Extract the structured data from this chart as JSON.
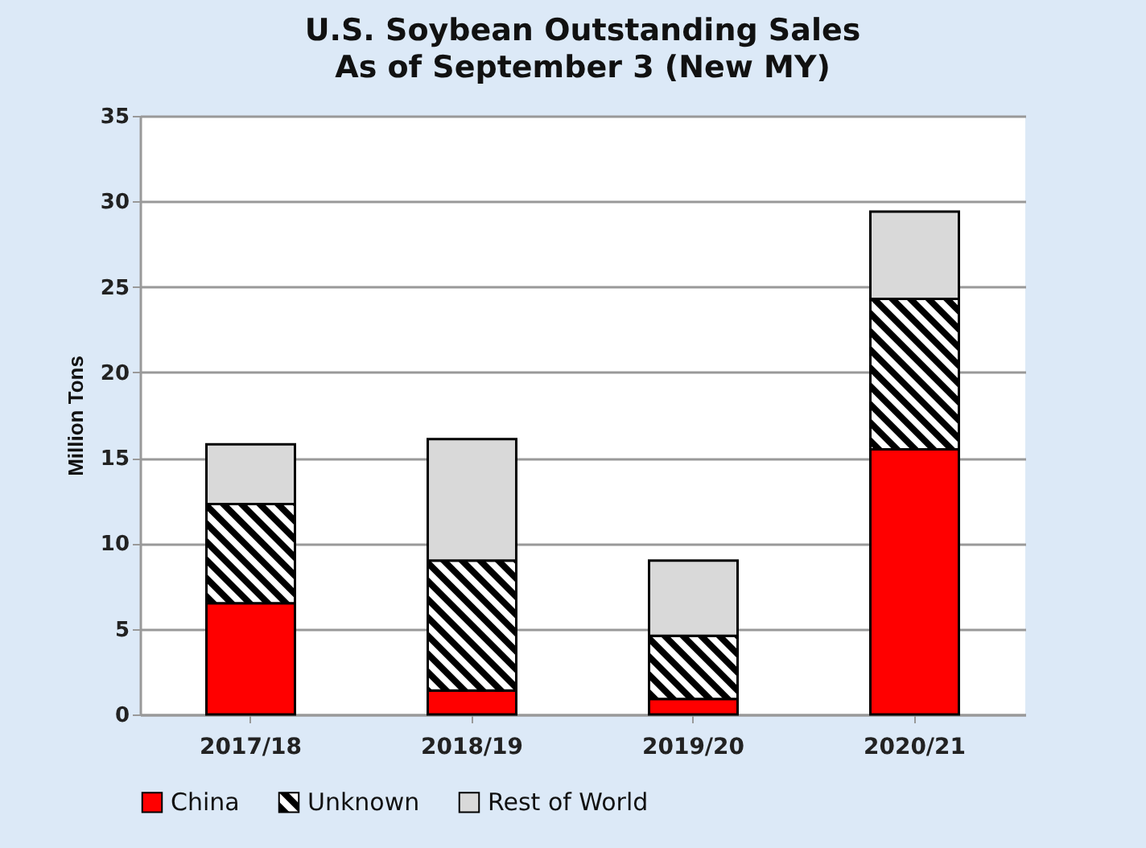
{
  "chart_data": {
    "type": "bar",
    "title": "U.S. Soybean Outstanding Sales",
    "subtitle": "As of September 3 (New MY)",
    "ylabel": "Million Tons",
    "categories": [
      "2017/18",
      "2018/19",
      "2019/20",
      "2020/21"
    ],
    "series": [
      {
        "name": "China",
        "color": "#ff0000",
        "values": [
          6.5,
          1.4,
          0.9,
          15.5
        ]
      },
      {
        "name": "Unknown",
        "color": "#000000",
        "values": [
          5.8,
          7.6,
          3.7,
          8.8
        ]
      },
      {
        "name": "Rest of World",
        "color": "#d9d9d9",
        "values": [
          3.5,
          7.1,
          4.4,
          5.1
        ]
      }
    ],
    "stacked": true,
    "ylim": [
      0,
      35
    ],
    "yticks": [
      0,
      5,
      10,
      15,
      20,
      25,
      30,
      35
    ],
    "grid": "y",
    "legend": "bottom"
  }
}
